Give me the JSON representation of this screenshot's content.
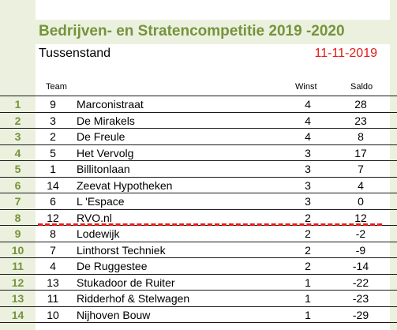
{
  "title": "Bedrijven- en Stratencompetitie 2019 -2020",
  "subtitle": "Tussenstand",
  "date": "11-11-2019",
  "headers": {
    "team": "Team",
    "winst": "Winst",
    "saldo": "Saldo"
  },
  "colors": {
    "accent_green": "#76933c",
    "panel_bg": "#ebf1de",
    "date_red": "#e41b17",
    "cutoff_line": "#e41b17"
  },
  "rows": [
    {
      "rank": "1",
      "team": "9",
      "name": "Marconistraat",
      "winst": "4",
      "saldo": "28"
    },
    {
      "rank": "2",
      "team": "3",
      "name": "De Mirakels",
      "winst": "4",
      "saldo": "23"
    },
    {
      "rank": "3",
      "team": "2",
      "name": "De Freule",
      "winst": "4",
      "saldo": "8"
    },
    {
      "rank": "4",
      "team": "5",
      "name": "Het Vervolg",
      "winst": "3",
      "saldo": "17"
    },
    {
      "rank": "5",
      "team": "1",
      "name": "Billitonlaan",
      "winst": "3",
      "saldo": "7"
    },
    {
      "rank": "6",
      "team": "14",
      "name": "Zeevat Hypotheken",
      "winst": "3",
      "saldo": "4"
    },
    {
      "rank": "7",
      "team": "6",
      "name": "L 'Espace",
      "winst": "3",
      "saldo": "0"
    },
    {
      "rank": "8",
      "team": "12",
      "name": "RVO.nl",
      "winst": "2",
      "saldo": "12"
    },
    {
      "rank": "9",
      "team": "8",
      "name": "Lodewijk",
      "winst": "2",
      "saldo": "-2"
    },
    {
      "rank": "10",
      "team": "7",
      "name": "Linthorst Techniek",
      "winst": "2",
      "saldo": "-9"
    },
    {
      "rank": "11",
      "team": "4",
      "name": "De Ruggestee",
      "winst": "2",
      "saldo": "-14"
    },
    {
      "rank": "12",
      "team": "13",
      "name": "Stukadoor de Ruiter",
      "winst": "1",
      "saldo": "-22"
    },
    {
      "rank": "13",
      "team": "11",
      "name": "Ridderhof & Stelwagen",
      "winst": "1",
      "saldo": "-23"
    },
    {
      "rank": "14",
      "team": "10",
      "name": "Nijhoven Bouw",
      "winst": "1",
      "saldo": "-29"
    }
  ]
}
